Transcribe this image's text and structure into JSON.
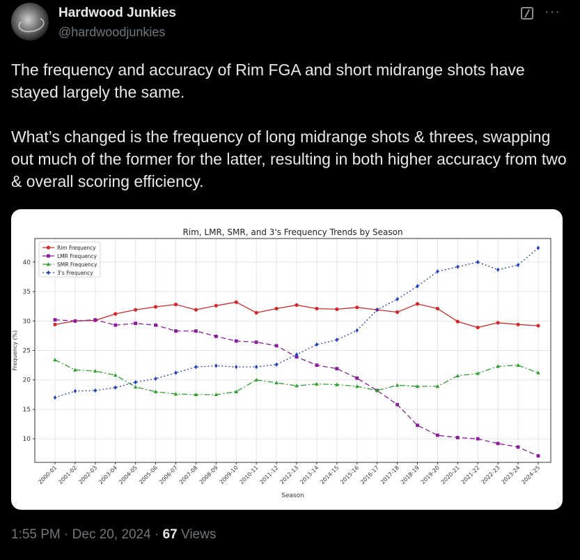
{
  "tweet": {
    "author_name": "Hardwood Junkies",
    "author_handle": "@hardwoodjunkies",
    "paragraph_1": "The frequency and accuracy of Rim FGA and short midrange shots have stayed largely the same.",
    "paragraph_2": "What’s changed is the frequency of long midrange shots & threes, swapping out much of the former for the latter, resulting in both higher accuracy from two & overall scoring efficiency.",
    "time": "1:55 PM",
    "sep1": " · ",
    "date": "Dec 20, 2024",
    "sep2": " · ",
    "views_count": "67",
    "views_label": " Views",
    "more_label": "···"
  },
  "colors": {
    "background": "#000000",
    "text": "#e7e9ea",
    "muted": "#71767b"
  },
  "icons": {
    "grok": "grok-icon",
    "more": "more-icon",
    "avatar": "avatar"
  },
  "chart_data": {
    "type": "line",
    "title": "Rim, LMR, SMR, and 3's Frequency Trends by Season",
    "xlabel": "Season",
    "ylabel": "Frequency (%)",
    "ylim": [
      6,
      44
    ],
    "yticks": [
      10,
      15,
      20,
      25,
      30,
      35,
      40
    ],
    "grid": true,
    "legend_position": "top-left",
    "categories": [
      "2000-01",
      "2001-02",
      "2002-03",
      "2003-04",
      "2004-05",
      "2005-06",
      "2006-07",
      "2007-08",
      "2008-09",
      "2009-10",
      "2010-11",
      "2011-12",
      "2012-13",
      "2013-14",
      "2014-15",
      "2015-16",
      "2016-17",
      "2017-18",
      "2018-19",
      "2019-20",
      "2020-21",
      "2021-22",
      "2022-23",
      "2023-24",
      "2024-25"
    ],
    "series": [
      {
        "name": "Rim Frequency",
        "color": "#d62728",
        "dash": "",
        "marker": "circle",
        "values": [
          29.4,
          30.0,
          30.1,
          31.2,
          31.9,
          32.4,
          32.8,
          31.9,
          32.6,
          33.2,
          31.4,
          32.1,
          32.7,
          32.1,
          32.0,
          32.3,
          31.9,
          31.5,
          32.9,
          32.1,
          29.9,
          28.9,
          29.7,
          29.4,
          29.2
        ]
      },
      {
        "name": "LMR Frequency",
        "color": "#8b1a9e",
        "dash": "7,4",
        "marker": "square",
        "values": [
          30.2,
          30.0,
          30.2,
          29.3,
          29.6,
          29.3,
          28.3,
          28.3,
          27.4,
          26.6,
          26.4,
          25.8,
          23.9,
          22.5,
          21.9,
          20.3,
          18.2,
          15.8,
          12.3,
          10.6,
          10.2,
          10.0,
          9.2,
          8.6,
          7.1
        ]
      },
      {
        "name": "SMR Frequency",
        "color": "#2ca02c",
        "dash": "8,3,2,3",
        "marker": "triangle",
        "values": [
          23.4,
          21.7,
          21.5,
          20.8,
          18.8,
          18.0,
          17.6,
          17.5,
          17.5,
          18.0,
          20.0,
          19.5,
          19.0,
          19.3,
          19.2,
          18.9,
          18.2,
          19.1,
          18.9,
          18.9,
          20.7,
          21.1,
          22.3,
          22.5,
          21.2
        ]
      },
      {
        "name": "3's Frequency",
        "color": "#1f3fbf",
        "dash": "2,3",
        "marker": "diamond",
        "values": [
          17.0,
          18.1,
          18.2,
          18.7,
          19.6,
          20.2,
          21.2,
          22.2,
          22.4,
          22.2,
          22.2,
          22.6,
          24.3,
          26.0,
          26.8,
          28.4,
          31.9,
          33.7,
          35.9,
          38.4,
          39.2,
          40.0,
          38.7,
          39.5,
          42.4
        ]
      }
    ]
  }
}
